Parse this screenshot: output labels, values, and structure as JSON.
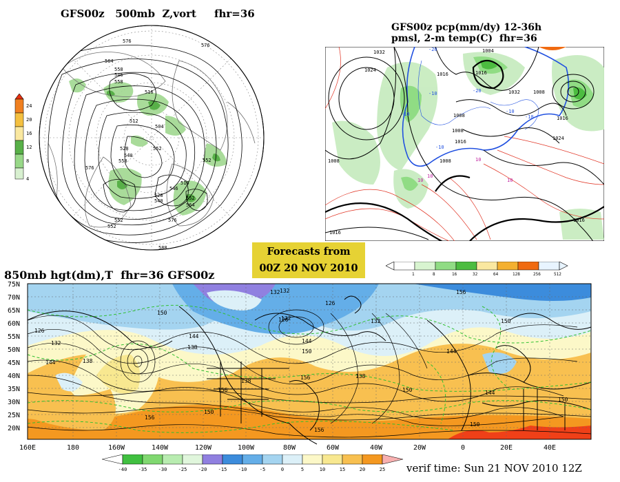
{
  "upper_left": {
    "title": "GFS00z   500mb  Z,vort     fhr=36",
    "contour_labels": [
      "576",
      "576",
      "564",
      "558",
      "546",
      "558",
      "516",
      "512",
      "504",
      "528",
      "540",
      "558",
      "576",
      "552",
      "552",
      "516",
      "528",
      "540",
      "552",
      "564",
      "576",
      "552",
      "546",
      "552",
      "588"
    ],
    "colorbar": {
      "labels": [
        "24",
        "20",
        "16",
        "12",
        "8",
        "4"
      ],
      "colors": [
        "#f08020",
        "#f4b840",
        "#fae8a0",
        "#9ad890",
        "#6cc060",
        "#c8ecc0",
        "#ffffff"
      ]
    }
  },
  "upper_right": {
    "title_line1": "GFS00z pcp(mm/dy) 12-36h",
    "title_line2": "pmsl, 2-m temp(C)  fhr=36",
    "isobar_labels": [
      "1032",
      "1024",
      "1008",
      "1004",
      "1016",
      "1016",
      "1008",
      "1008",
      "1008",
      "1016",
      "1008",
      "1032",
      "1016",
      "1024",
      "1016",
      "1016"
    ],
    "temp_labels": [
      "-20",
      "-10",
      "-20",
      "-10",
      "-10",
      "-10",
      "-10",
      "10",
      "10",
      "10",
      "10"
    ],
    "colorbar": {
      "labels": [
        "1",
        "8",
        "16",
        "32",
        "64",
        "128",
        "256",
        "512"
      ],
      "colors": [
        "#ffffff",
        "#d8f4d0",
        "#90dc84",
        "#4cbc40",
        "#fae8a0",
        "#f4b030",
        "#f06a10",
        "#e83010",
        "#e8f4ff"
      ]
    }
  },
  "forecast_box": {
    "line1": "Forecasts from",
    "line2": "00Z 20 NOV 2010"
  },
  "bottom": {
    "title": "850mb hgt(dm),T  fhr=36 GFS00z",
    "lat_labels": [
      "75N",
      "70N",
      "65N",
      "60N",
      "55N",
      "50N",
      "45N",
      "40N",
      "35N",
      "30N",
      "25N",
      "20N"
    ],
    "lon_labels": [
      "160E",
      "180",
      "160W",
      "140W",
      "120W",
      "100W",
      "80W",
      "60W",
      "40W",
      "20W",
      "0",
      "20E",
      "40E"
    ],
    "height_labels": [
      "132",
      "126",
      "132",
      "150",
      "126",
      "144",
      "138",
      "150",
      "144",
      "126",
      "132",
      "132",
      "144",
      "132",
      "156",
      "150",
      "144",
      "138",
      "138",
      "156",
      "156",
      "150",
      "150",
      "144",
      "156",
      "150",
      "138",
      "150",
      "156"
    ],
    "colorbar": {
      "labels": [
        "-40",
        "-35",
        "-30",
        "-25",
        "-20",
        "-15",
        "-10",
        "-5",
        "0",
        "5",
        "10",
        "15",
        "20",
        "25"
      ],
      "colors": [
        "#40c040",
        "#80d870",
        "#b8ecb0",
        "#e0f6dc",
        "#9080e0",
        "#3c8cdc",
        "#64aee8",
        "#a4d4f0",
        "#dcf0f8",
        "#fcf8c8",
        "#f8e890",
        "#f8c050",
        "#f49820",
        "#f04018",
        "#f8b0b0"
      ]
    }
  },
  "verif": "verif time: Sun 21 NOV 2010 12Z"
}
